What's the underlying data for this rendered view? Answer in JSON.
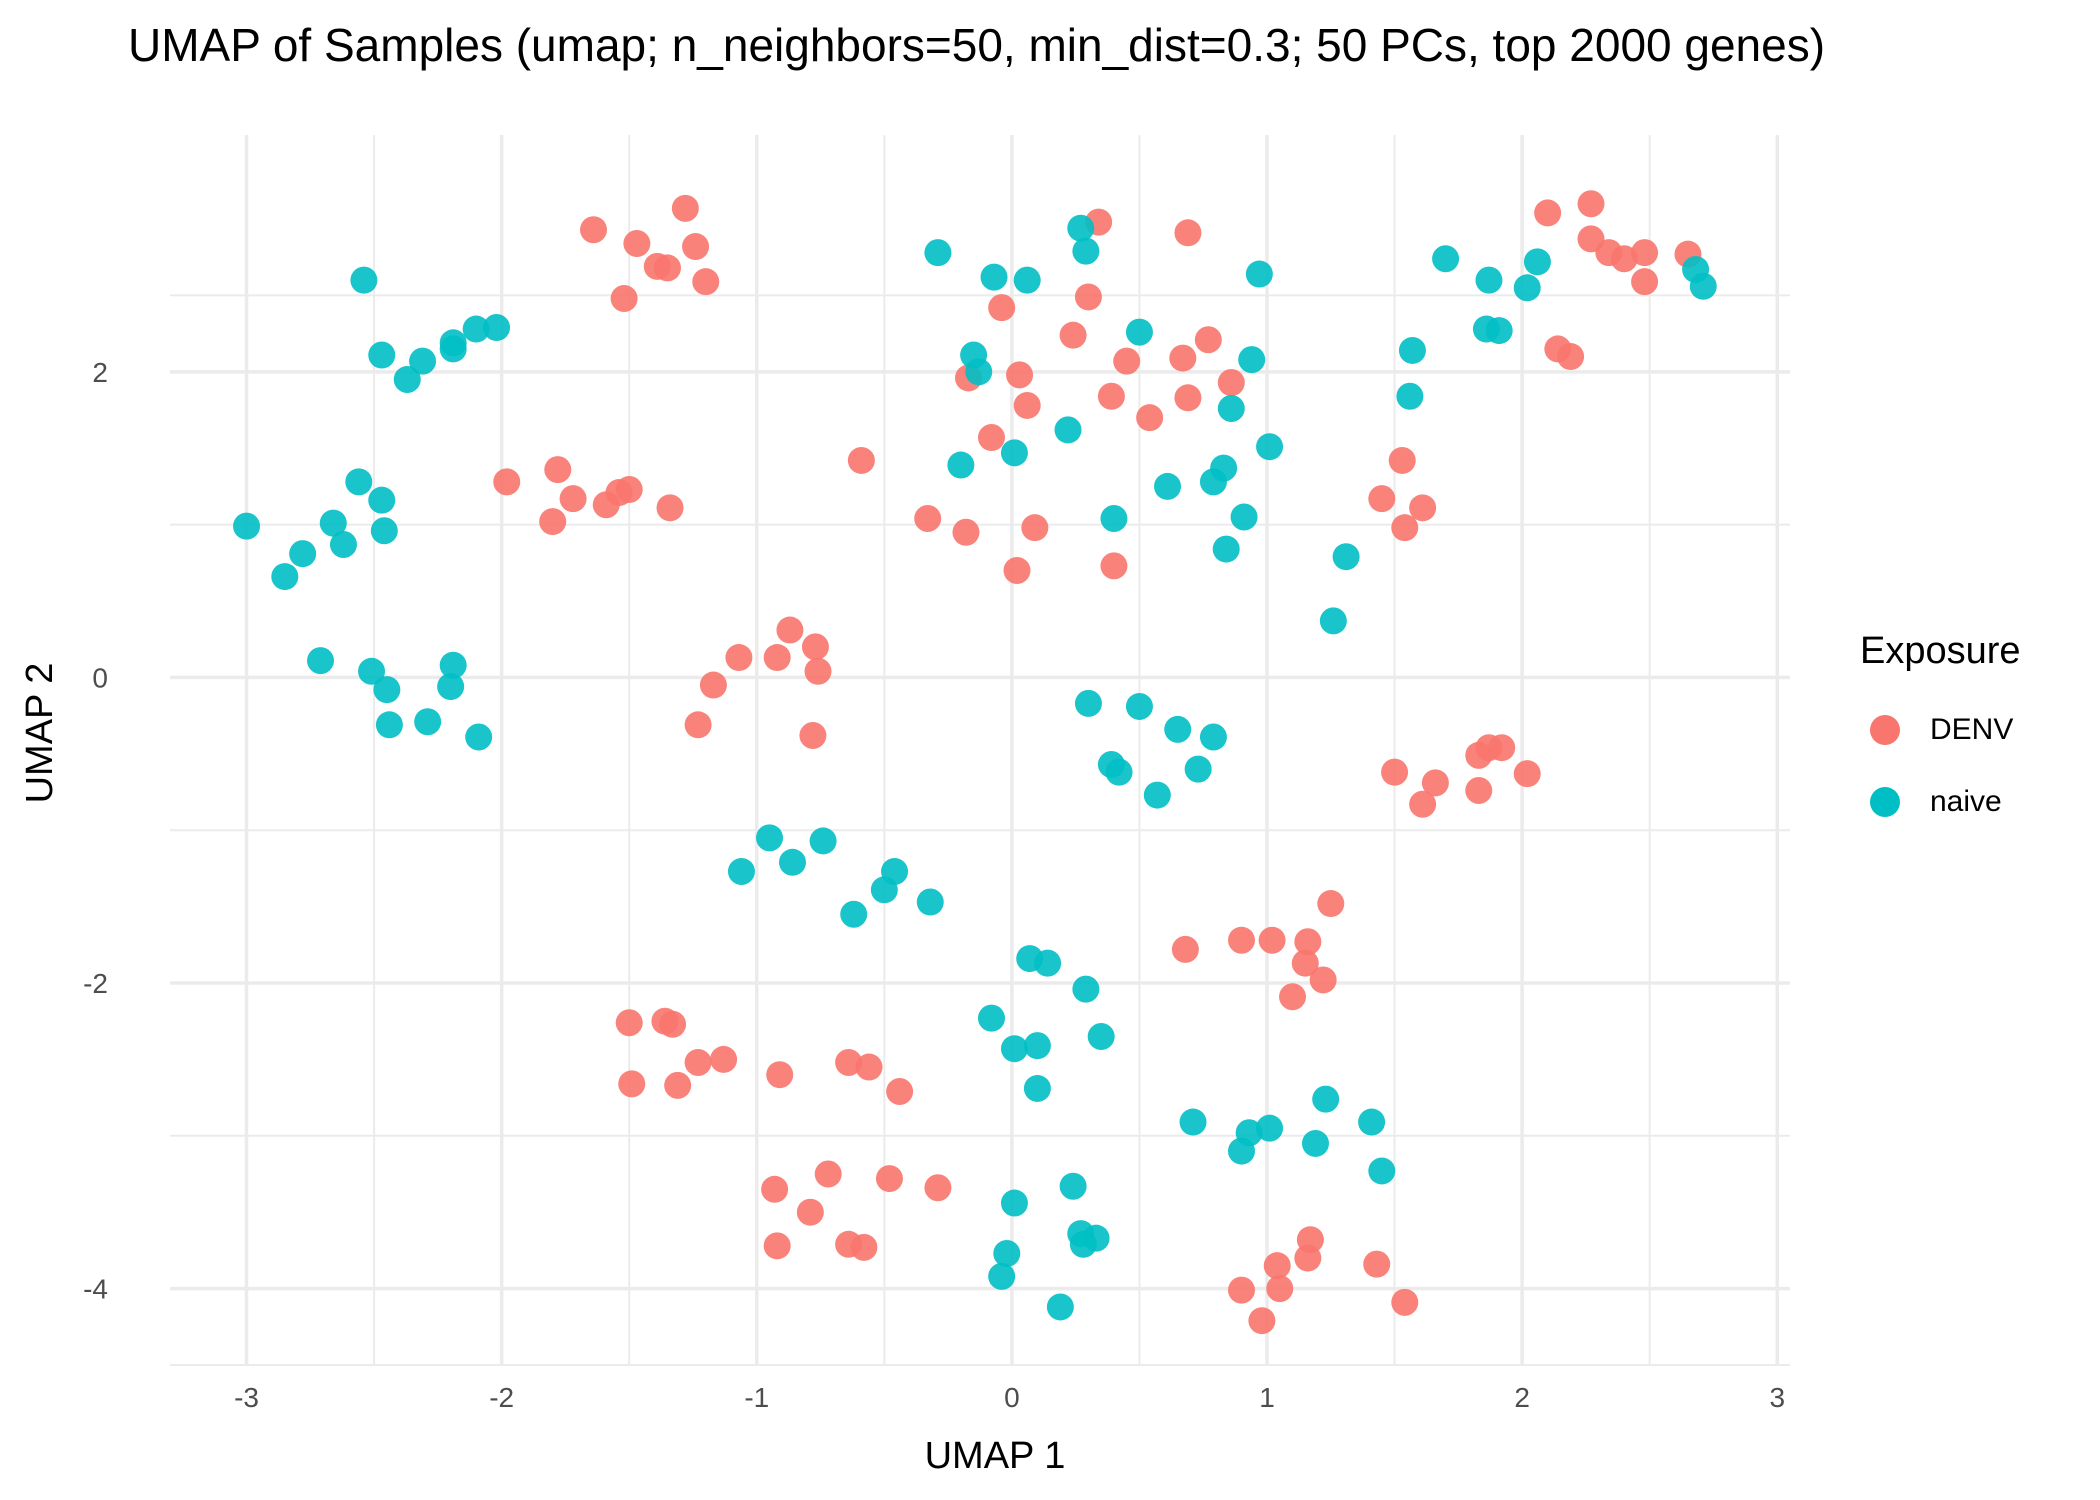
{
  "chart_data": {
    "type": "scatter",
    "title": "UMAP of Samples (umap; n_neighbors=50, min_dist=0.3; 50 PCs, top 2000 genes)",
    "xlabel": "UMAP 1",
    "ylabel": "UMAP 2",
    "xlim": [
      -3.3,
      3.05
    ],
    "ylim": [
      -4.5,
      3.55
    ],
    "xticks": [
      -3,
      -2,
      -1,
      0,
      1,
      2,
      3
    ],
    "yticks": [
      -4,
      -2,
      0,
      2
    ],
    "grid": true,
    "legend": {
      "title": "Exposure",
      "position": "right"
    },
    "series": [
      {
        "name": "DENV",
        "color": "#F8766D",
        "points": [
          [
            -1.64,
            2.93
          ],
          [
            -1.47,
            2.84
          ],
          [
            -1.39,
            2.69
          ],
          [
            -1.35,
            2.68
          ],
          [
            -1.28,
            3.07
          ],
          [
            -1.24,
            2.82
          ],
          [
            -1.2,
            2.59
          ],
          [
            -1.52,
            2.48
          ],
          [
            -1.98,
            1.28
          ],
          [
            -1.78,
            1.36
          ],
          [
            -1.72,
            1.17
          ],
          [
            -1.8,
            1.02
          ],
          [
            -1.59,
            1.13
          ],
          [
            -1.54,
            1.21
          ],
          [
            -1.5,
            1.23
          ],
          [
            -1.34,
            1.11
          ],
          [
            -0.87,
            0.31
          ],
          [
            -0.77,
            0.2
          ],
          [
            -1.07,
            0.13
          ],
          [
            -0.92,
            0.13
          ],
          [
            -0.76,
            0.04
          ],
          [
            -1.17,
            -0.05
          ],
          [
            -1.23,
            -0.31
          ],
          [
            -0.78,
            -0.38
          ],
          [
            -0.59,
            1.42
          ],
          [
            -0.33,
            1.04
          ],
          [
            -0.18,
            0.95
          ],
          [
            -0.17,
            1.96
          ],
          [
            -0.04,
            2.42
          ],
          [
            0.03,
            1.98
          ],
          [
            0.06,
            1.78
          ],
          [
            0.09,
            0.98
          ],
          [
            0.02,
            0.7
          ],
          [
            -0.08,
            1.57
          ],
          [
            0.24,
            2.24
          ],
          [
            0.3,
            2.49
          ],
          [
            0.34,
            2.98
          ],
          [
            0.39,
            1.84
          ],
          [
            0.45,
            2.07
          ],
          [
            0.54,
            1.7
          ],
          [
            0.67,
            2.09
          ],
          [
            0.69,
            1.83
          ],
          [
            0.77,
            2.21
          ],
          [
            0.86,
            1.93
          ],
          [
            0.69,
            2.91
          ],
          [
            0.4,
            0.73
          ],
          [
            2.1,
            3.04
          ],
          [
            2.27,
            3.1
          ],
          [
            2.27,
            2.87
          ],
          [
            2.34,
            2.78
          ],
          [
            2.4,
            2.74
          ],
          [
            2.48,
            2.78
          ],
          [
            2.48,
            2.59
          ],
          [
            2.65,
            2.77
          ],
          [
            2.14,
            2.15
          ],
          [
            2.19,
            2.1
          ],
          [
            1.45,
            1.17
          ],
          [
            1.53,
            1.42
          ],
          [
            1.54,
            0.98
          ],
          [
            1.61,
            1.11
          ],
          [
            1.5,
            -0.62
          ],
          [
            1.61,
            -0.83
          ],
          [
            1.66,
            -0.69
          ],
          [
            1.83,
            -0.51
          ],
          [
            1.87,
            -0.46
          ],
          [
            1.92,
            -0.46
          ],
          [
            1.83,
            -0.74
          ],
          [
            2.02,
            -0.63
          ],
          [
            0.68,
            -1.78
          ],
          [
            0.9,
            -1.72
          ],
          [
            1.02,
            -1.72
          ],
          [
            1.16,
            -1.73
          ],
          [
            1.15,
            -1.87
          ],
          [
            1.22,
            -1.98
          ],
          [
            1.25,
            -1.48
          ],
          [
            1.1,
            -2.09
          ],
          [
            -1.5,
            -2.26
          ],
          [
            -1.36,
            -2.25
          ],
          [
            -1.33,
            -2.27
          ],
          [
            -1.49,
            -2.66
          ],
          [
            -1.31,
            -2.67
          ],
          [
            -1.23,
            -2.52
          ],
          [
            -1.13,
            -2.5
          ],
          [
            -0.91,
            -2.6
          ],
          [
            -0.64,
            -2.52
          ],
          [
            -0.56,
            -2.55
          ],
          [
            -0.44,
            -2.71
          ],
          [
            -0.93,
            -3.35
          ],
          [
            -0.72,
            -3.25
          ],
          [
            -0.48,
            -3.28
          ],
          [
            -0.29,
            -3.34
          ],
          [
            -0.79,
            -3.5
          ],
          [
            -0.92,
            -3.72
          ],
          [
            -0.64,
            -3.71
          ],
          [
            -0.58,
            -3.73
          ],
          [
            0.9,
            -4.01
          ],
          [
            0.98,
            -4.21
          ],
          [
            1.04,
            -3.85
          ],
          [
            1.05,
            -4.0
          ],
          [
            1.16,
            -3.8
          ],
          [
            1.17,
            -3.68
          ],
          [
            1.43,
            -3.84
          ],
          [
            1.54,
            -4.09
          ]
        ]
      },
      {
        "name": "naive",
        "color": "#00BFC4",
        "points": [
          [
            -2.54,
            2.6
          ],
          [
            -2.47,
            2.11
          ],
          [
            -2.31,
            2.07
          ],
          [
            -2.37,
            1.95
          ],
          [
            -2.19,
            2.19
          ],
          [
            -2.19,
            2.15
          ],
          [
            -2.1,
            2.28
          ],
          [
            -2.02,
            2.29
          ],
          [
            -2.56,
            1.28
          ],
          [
            -2.47,
            1.16
          ],
          [
            -2.46,
            0.96
          ],
          [
            -2.66,
            1.01
          ],
          [
            -2.62,
            0.87
          ],
          [
            -2.78,
            0.81
          ],
          [
            -2.85,
            0.66
          ],
          [
            -3.0,
            0.99
          ],
          [
            -2.71,
            0.11
          ],
          [
            -2.51,
            0.04
          ],
          [
            -2.45,
            -0.08
          ],
          [
            -2.44,
            -0.31
          ],
          [
            -2.29,
            -0.29
          ],
          [
            -2.2,
            -0.06
          ],
          [
            -2.19,
            0.08
          ],
          [
            -2.09,
            -0.39
          ],
          [
            -0.29,
            2.78
          ],
          [
            -0.07,
            2.62
          ],
          [
            0.06,
            2.6
          ],
          [
            0.27,
            2.94
          ],
          [
            0.29,
            2.79
          ],
          [
            0.5,
            2.26
          ],
          [
            0.97,
            2.64
          ],
          [
            -0.15,
            2.11
          ],
          [
            -0.13,
            2.0
          ],
          [
            -0.2,
            1.39
          ],
          [
            0.01,
            1.47
          ],
          [
            0.22,
            1.62
          ],
          [
            0.4,
            1.04
          ],
          [
            0.61,
            1.25
          ],
          [
            0.79,
            1.28
          ],
          [
            0.83,
            1.37
          ],
          [
            0.86,
            1.76
          ],
          [
            0.91,
            1.05
          ],
          [
            0.94,
            2.08
          ],
          [
            1.01,
            1.51
          ],
          [
            0.84,
            0.84
          ],
          [
            1.56,
            1.84
          ],
          [
            1.57,
            2.14
          ],
          [
            1.7,
            2.74
          ],
          [
            1.86,
            2.28
          ],
          [
            1.91,
            2.27
          ],
          [
            1.87,
            2.6
          ],
          [
            2.02,
            2.55
          ],
          [
            2.06,
            2.72
          ],
          [
            2.68,
            2.67
          ],
          [
            2.71,
            2.56
          ],
          [
            1.31,
            0.79
          ],
          [
            1.26,
            0.37
          ],
          [
            0.3,
            -0.17
          ],
          [
            0.5,
            -0.19
          ],
          [
            0.65,
            -0.34
          ],
          [
            0.79,
            -0.39
          ],
          [
            0.39,
            -0.57
          ],
          [
            0.42,
            -0.62
          ],
          [
            0.73,
            -0.6
          ],
          [
            0.57,
            -0.77
          ],
          [
            -0.95,
            -1.05
          ],
          [
            -1.06,
            -1.27
          ],
          [
            -0.86,
            -1.21
          ],
          [
            -0.74,
            -1.07
          ],
          [
            -0.46,
            -1.27
          ],
          [
            -0.5,
            -1.39
          ],
          [
            -0.32,
            -1.47
          ],
          [
            -0.62,
            -1.55
          ],
          [
            0.07,
            -1.84
          ],
          [
            0.14,
            -1.87
          ],
          [
            0.29,
            -2.04
          ],
          [
            -0.08,
            -2.23
          ],
          [
            0.01,
            -2.43
          ],
          [
            0.1,
            -2.41
          ],
          [
            0.35,
            -2.35
          ],
          [
            0.1,
            -2.69
          ],
          [
            0.71,
            -2.91
          ],
          [
            0.93,
            -2.98
          ],
          [
            1.01,
            -2.95
          ],
          [
            0.9,
            -3.1
          ],
          [
            1.19,
            -3.05
          ],
          [
            1.23,
            -2.76
          ],
          [
            1.41,
            -2.91
          ],
          [
            1.45,
            -3.23
          ],
          [
            0.24,
            -3.33
          ],
          [
            0.01,
            -3.44
          ],
          [
            0.27,
            -3.64
          ],
          [
            0.28,
            -3.71
          ],
          [
            0.33,
            -3.67
          ],
          [
            -0.02,
            -3.77
          ],
          [
            -0.04,
            -3.92
          ],
          [
            0.19,
            -4.12
          ]
        ]
      }
    ]
  }
}
